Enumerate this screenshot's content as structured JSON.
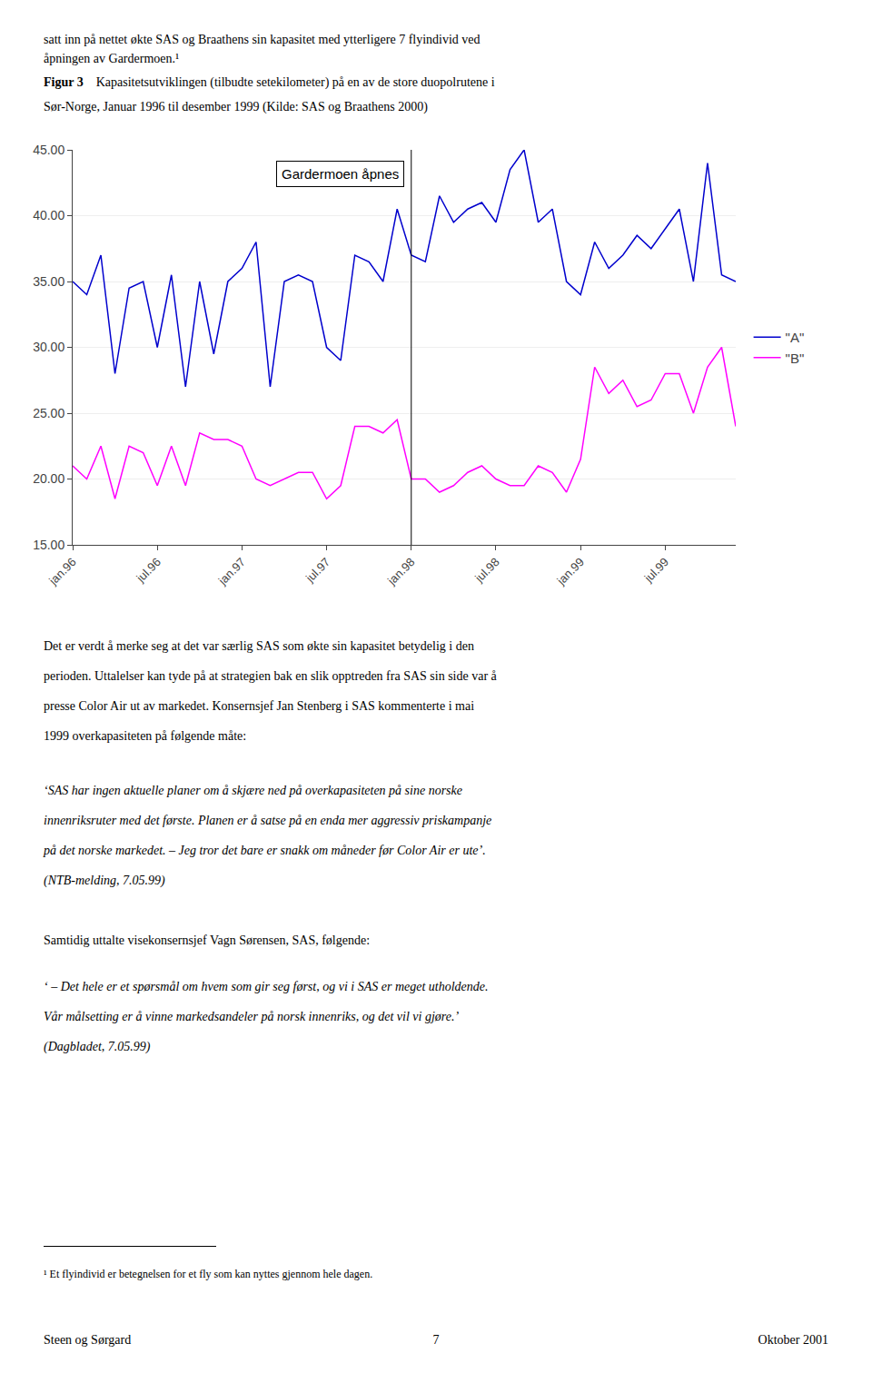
{
  "page": {
    "header": [
      "satt inn på nettet økte SAS og Braathens sin kapasitet med ytterligere 7 flyindivid ved",
      "åpningen av Gardermoen.¹"
    ],
    "body": [
      "Det er verdt å merke seg at det var særlig SAS som økte sin kapasitet betydelig i den",
      "perioden. Uttalelser kan tyde på at strategien bak en slik opptreden fra SAS sin side var å",
      "presse Color Air ut av markedet. Konsernsjef Jan Stenberg i SAS kommenterte i mai",
      "1999 overkapasiteten på følgende måte:"
    ],
    "quote1": [
      "‘SAS har ingen aktuelle planer om å skjære ned på overkapasiteten på sine norske",
      "innenriksruter med det første. Planen er å satse på en enda mer aggressiv priskampanje",
      "på det norske markedet. – Jeg tror det bare er snakk om måneder før Color Air er ute’.",
      "(NTB-melding, 7.05.99)"
    ],
    "body2": "Samtidig uttalte visekonsernsjef Vagn Sørensen, SAS, følgende:",
    "quote2": [
      "‘ – Det hele er et spørsmål om hvem som gir seg først, og vi i SAS er meget utholdende.",
      "Vår målsetting er å vinne markedsandeler på norsk innenriks, og det vil vi gjøre.’",
      "(Dagbladet, 7.05.99)"
    ],
    "footnote": "¹ Et flyindivid er betegnelsen for et fly som kan nyttes gjennom hele dagen.",
    "footer": {
      "left": "Steen og Sørgard",
      "center": "7",
      "right": "Oktober 2001"
    }
  },
  "chart_data": {
    "type": "line",
    "title": "Figur 3",
    "subtitle": [
      "Kapasitetsutviklingen (tilbudte setekilometer) på en av de store duopolrutene i",
      "Sør-Norge, Januar 1996 til desember 1999 (Kilde: SAS og Braathens 2000)"
    ],
    "categories": [
      "jan.96",
      null,
      null,
      null,
      null,
      null,
      "jul.96",
      null,
      null,
      null,
      null,
      null,
      "jan.97",
      null,
      null,
      null,
      null,
      null,
      "jul.97",
      null,
      null,
      null,
      null,
      null,
      "jan.98",
      null,
      null,
      null,
      null,
      null,
      "jul.98",
      null,
      null,
      null,
      null,
      null,
      "jan.99",
      null,
      null,
      null,
      null,
      null,
      "jul.99",
      null,
      null,
      null,
      null,
      null
    ],
    "series": [
      {
        "name": "\"A\"",
        "color": "#0000CD",
        "values": [
          35.0,
          34.0,
          37.0,
          28.0,
          34.5,
          35.0,
          30.0,
          35.5,
          27.0,
          35.0,
          29.5,
          35.0,
          36.0,
          38.0,
          27.0,
          35.0,
          35.5,
          35.0,
          30.0,
          29.0,
          37.0,
          36.5,
          35.0,
          40.5,
          37.0,
          36.5,
          41.5,
          39.5,
          40.5,
          41.0,
          39.5,
          43.5,
          45.0,
          39.5,
          40.5,
          35.0,
          34.0,
          38.0,
          36.0,
          37.0,
          38.5,
          37.5,
          39.0,
          40.5,
          35.0,
          44.0,
          35.5,
          35.0
        ]
      },
      {
        "name": "\"B\"",
        "color": "#FF00FF",
        "values": [
          21.0,
          20.0,
          22.5,
          18.5,
          22.5,
          22.0,
          19.5,
          22.5,
          19.5,
          23.5,
          23.0,
          23.0,
          22.5,
          20.0,
          19.5,
          20.0,
          20.5,
          20.5,
          18.5,
          19.5,
          24.0,
          24.0,
          23.5,
          24.5,
          20.0,
          20.0,
          19.0,
          19.5,
          20.5,
          21.0,
          20.0,
          19.5,
          19.5,
          21.0,
          20.5,
          19.0,
          21.5,
          28.5,
          26.5,
          27.5,
          25.5,
          26.0,
          28.0,
          28.0,
          25.0,
          28.5,
          30.0,
          24.0
        ]
      }
    ],
    "ylim": [
      15.0,
      45.0
    ],
    "yticks": [
      {
        "value": 15.0,
        "label": "15.00"
      },
      {
        "value": 20.0,
        "label": "20.00"
      },
      {
        "value": 25.0,
        "label": "25.00"
      },
      {
        "value": 30.0,
        "label": "30.00"
      },
      {
        "value": 35.0,
        "label": "35.00"
      },
      {
        "value": 40.0,
        "label": "40.00"
      },
      {
        "value": 45.0,
        "label": "45.00"
      }
    ],
    "grid": true,
    "legend": "right",
    "annotations": [
      {
        "text": "Gardermoen åpnes",
        "x": 24
      }
    ]
  }
}
